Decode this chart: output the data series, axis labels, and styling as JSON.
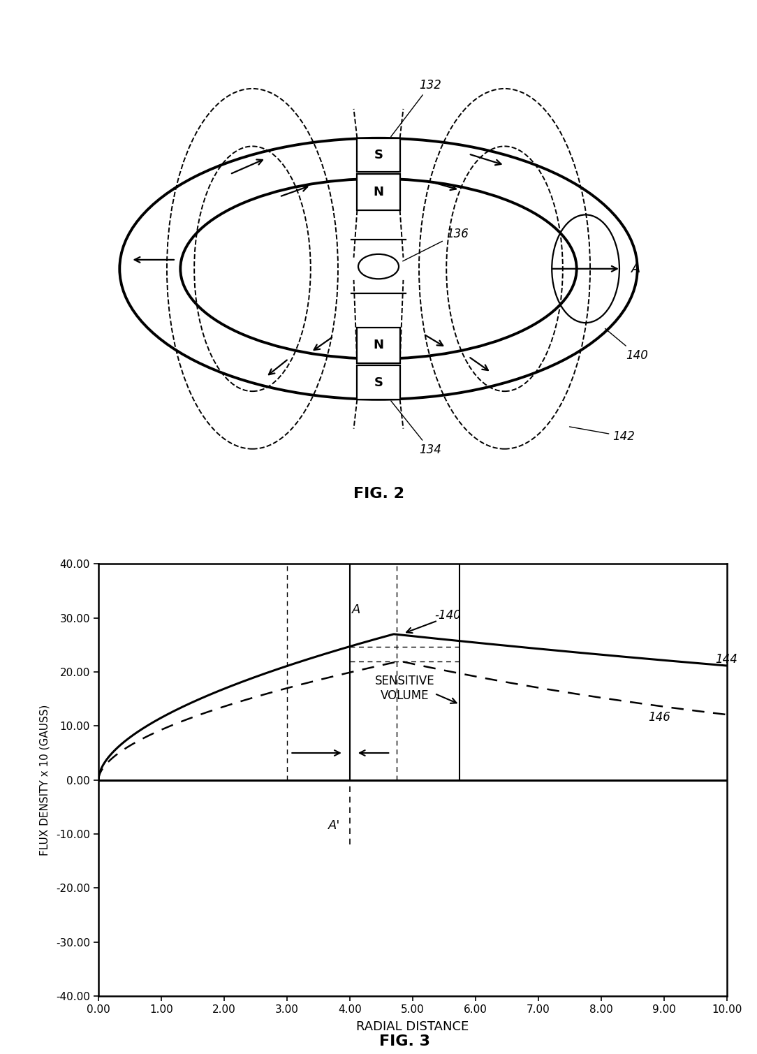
{
  "fig2": {
    "title": "FIG. 2",
    "xlim": [
      -6.5,
      6.5
    ],
    "ylim": [
      -5.5,
      5.5
    ],
    "S_top": "S",
    "N_top": "N",
    "N_bot": "N",
    "S_bot": "S",
    "label_132": "132",
    "label_134": "134",
    "label_136": "136",
    "label_140": "140",
    "label_142": "142",
    "label_A": "A"
  },
  "fig3": {
    "title": "FIG. 3",
    "xlabel": "RADIAL DISTANCE",
    "ylabel": "FLUX DENSITY x 10 (GAUSS)",
    "xlim": [
      0.0,
      10.0
    ],
    "ylim": [
      -40.0,
      40.0
    ],
    "xticks": [
      0.0,
      1.0,
      2.0,
      3.0,
      4.0,
      5.0,
      6.0,
      7.0,
      8.0,
      9.0,
      10.0
    ],
    "yticks": [
      -40.0,
      -30.0,
      -20.0,
      -10.0,
      0.0,
      10.0,
      20.0,
      30.0,
      40.0
    ],
    "curve144_label": "144",
    "curve146_label": "146",
    "label_140": "-140",
    "label_A": "A",
    "label_Aprime": "A'",
    "sensitive_volume_line1": "SENSITIVE",
    "sensitive_volume_line2": "VOLUME",
    "x_A_line": 4.0,
    "x_sv_right": 5.75,
    "x_left_dash": 3.0,
    "x_right_dash": 4.75
  },
  "background_color": "#ffffff",
  "line_color": "#000000",
  "fig_width": 10.84,
  "fig_height": 15.09
}
